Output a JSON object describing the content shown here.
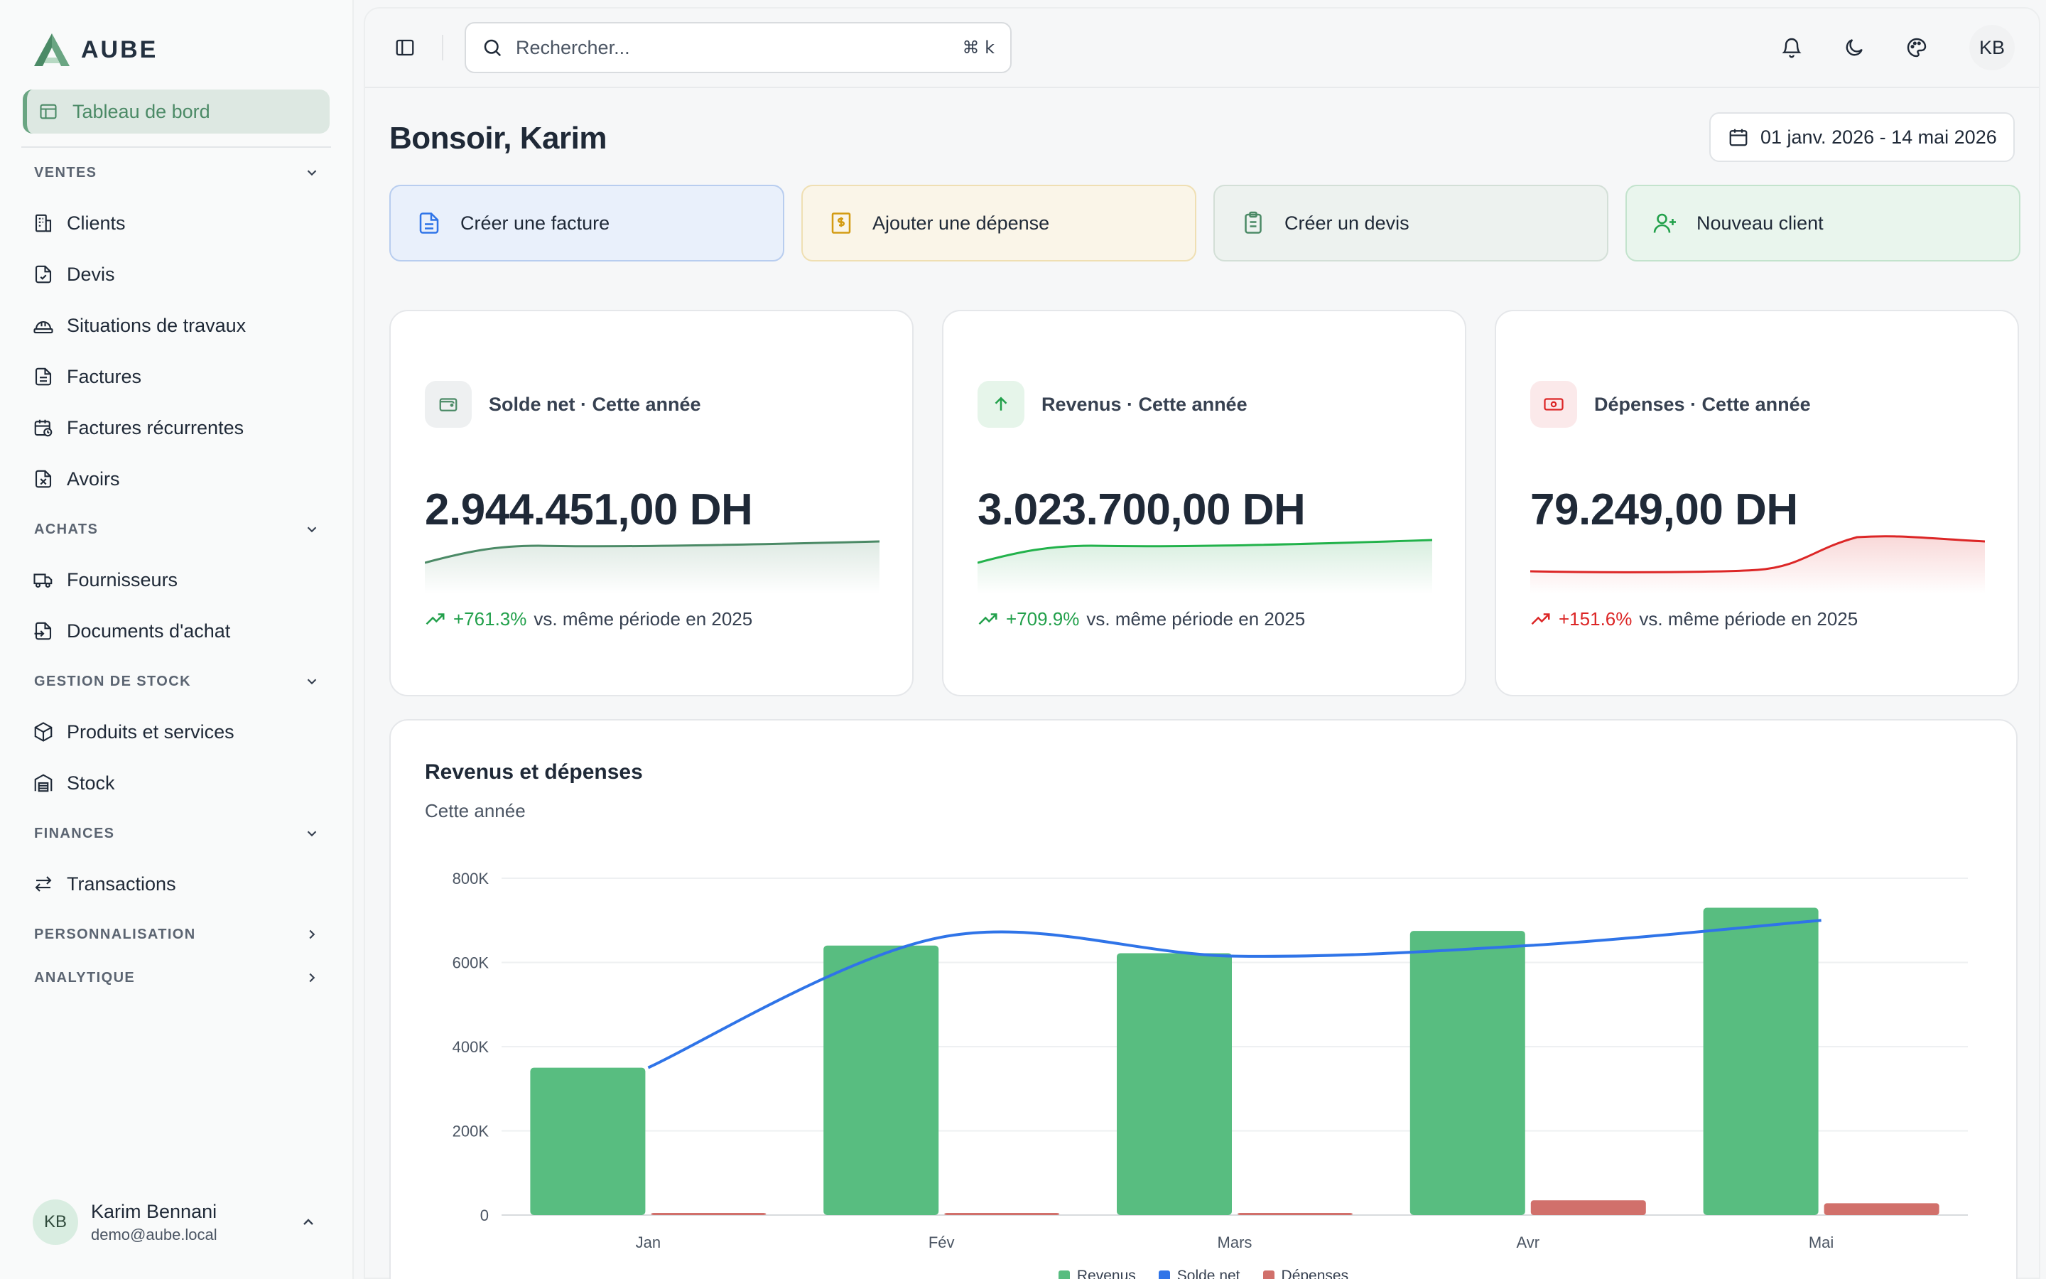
{
  "brand": {
    "name": "AUBE"
  },
  "sidebar": {
    "active_item": "Tableau de bord",
    "sections": {
      "ventes": "VENTES",
      "achats": "ACHATS",
      "stock": "GESTION DE STOCK",
      "finances": "FINANCES",
      "perso": "PERSONNALISATION",
      "analytique": "ANALYTIQUE"
    },
    "items": {
      "clients": "Clients",
      "devis": "Devis",
      "situations": "Situations de travaux",
      "factures": "Factures",
      "factures_rec": "Factures récurrentes",
      "avoirs": "Avoirs",
      "fournisseurs": "Fournisseurs",
      "docs_achat": "Documents d'achat",
      "produits": "Produits et services",
      "stock": "Stock",
      "transactions": "Transactions"
    },
    "user": {
      "initials": "KB",
      "name": "Karim Bennani",
      "email": "demo@aube.local"
    }
  },
  "topbar": {
    "search_placeholder": "Rechercher...",
    "shortcut": "⌘ k",
    "avatar_initials": "KB"
  },
  "header": {
    "greeting": "Bonsoir, Karim",
    "date_range": "01 janv. 2026 - 14 mai 2026"
  },
  "quick_actions": {
    "invoice": "Créer une facture",
    "expense": "Ajouter une dépense",
    "quote": "Créer un devis",
    "client": "Nouveau client"
  },
  "kpis": {
    "net": {
      "title": "Solde net · Cette année",
      "value": "2.944.451,00 DH",
      "change": "+761.3%",
      "compare": "vs. même période en 2025"
    },
    "revenue": {
      "title": "Revenus · Cette année",
      "value": "3.023.700,00 DH",
      "change": "+709.9%",
      "compare": "vs. même période en 2025"
    },
    "expenses": {
      "title": "Dépenses · Cette année",
      "value": "79.249,00 DH",
      "change": "+151.6%",
      "compare": "vs. même période en 2025"
    }
  },
  "colors": {
    "revenue": "#58bd80",
    "net": "#2f74e8",
    "expenses": "#d1706b",
    "accent": "#4b8a66"
  },
  "chart": {
    "title": "Revenus et dépenses",
    "subtitle": "Cette année"
  },
  "chart_data": {
    "type": "bar",
    "categories": [
      "Jan",
      "Fév",
      "Mars",
      "Avr",
      "Mai"
    ],
    "series": [
      {
        "name": "Revenus",
        "kind": "bar",
        "values": [
          350000,
          640000,
          622000,
          675000,
          730000
        ]
      },
      {
        "name": "Solde net",
        "kind": "line",
        "values": [
          350000,
          660000,
          615000,
          640000,
          700000
        ]
      },
      {
        "name": "Dépenses",
        "kind": "bar",
        "values": [
          3000,
          3000,
          3000,
          35000,
          28000
        ]
      }
    ],
    "yticks": [
      "0",
      "200K",
      "400K",
      "600K",
      "800K"
    ],
    "ylim": [
      0,
      800000
    ],
    "grid": true,
    "legend": "bottom-center"
  }
}
